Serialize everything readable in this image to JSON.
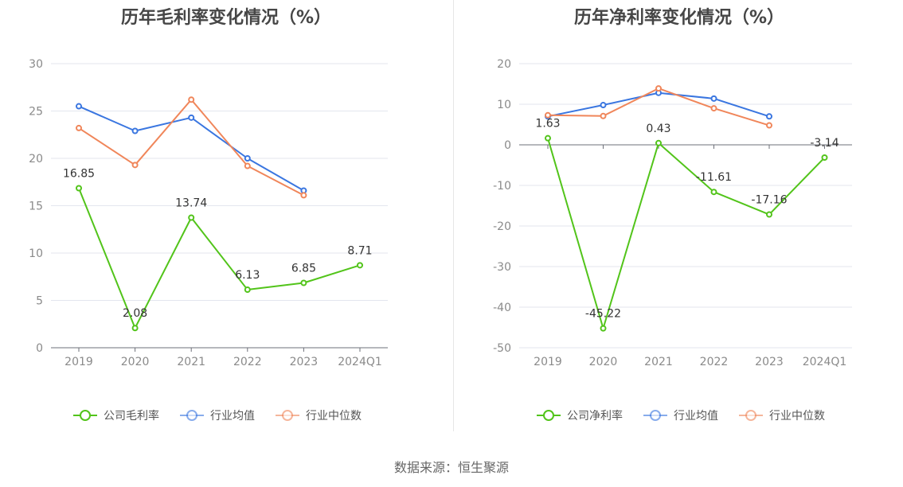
{
  "source": "数据来源：恒生聚源",
  "chart_data": [
    {
      "type": "line",
      "title": "历年毛利率变化情况（%）",
      "categories": [
        "2019",
        "2020",
        "2021",
        "2022",
        "2023",
        "2024Q1"
      ],
      "ylim": [
        0,
        30
      ],
      "yticks": [
        0,
        5,
        10,
        15,
        20,
        25,
        30
      ],
      "grid": true,
      "legend_position": "bottom",
      "series": [
        {
          "name": "公司毛利率",
          "color": "#52c41a",
          "values": [
            16.85,
            2.08,
            13.74,
            6.13,
            6.85,
            8.71
          ],
          "labels": [
            "16.85",
            "2.08",
            "13.74",
            "6.13",
            "6.85",
            "8.71"
          ]
        },
        {
          "name": "行业均值",
          "color": "#3a76e0",
          "values": [
            25.5,
            22.9,
            24.3,
            20.0,
            16.6,
            null
          ]
        },
        {
          "name": "行业中位数",
          "color": "#f0865a",
          "values": [
            23.2,
            19.3,
            26.2,
            19.2,
            16.1,
            null
          ]
        }
      ]
    },
    {
      "type": "line",
      "title": "历年净利率变化情况（%）",
      "categories": [
        "2019",
        "2020",
        "2021",
        "2022",
        "2023",
        "2024Q1"
      ],
      "ylim": [
        -50,
        20
      ],
      "yticks": [
        -50,
        -40,
        -30,
        -20,
        -10,
        0,
        10,
        20
      ],
      "grid": true,
      "legend_position": "bottom",
      "series": [
        {
          "name": "公司净利率",
          "color": "#52c41a",
          "values": [
            1.63,
            -45.22,
            0.43,
            -11.61,
            -17.16,
            -3.14
          ],
          "labels": [
            "1.63",
            "-45.22",
            "0.43",
            "-11.61",
            "-17.16",
            "-3.14"
          ]
        },
        {
          "name": "行业均值",
          "color": "#3a76e0",
          "values": [
            7.0,
            9.8,
            12.8,
            11.4,
            7.0,
            null
          ]
        },
        {
          "name": "行业中位数",
          "color": "#f0865a",
          "values": [
            7.3,
            7.1,
            13.9,
            9.0,
            4.8,
            null
          ]
        }
      ]
    }
  ]
}
